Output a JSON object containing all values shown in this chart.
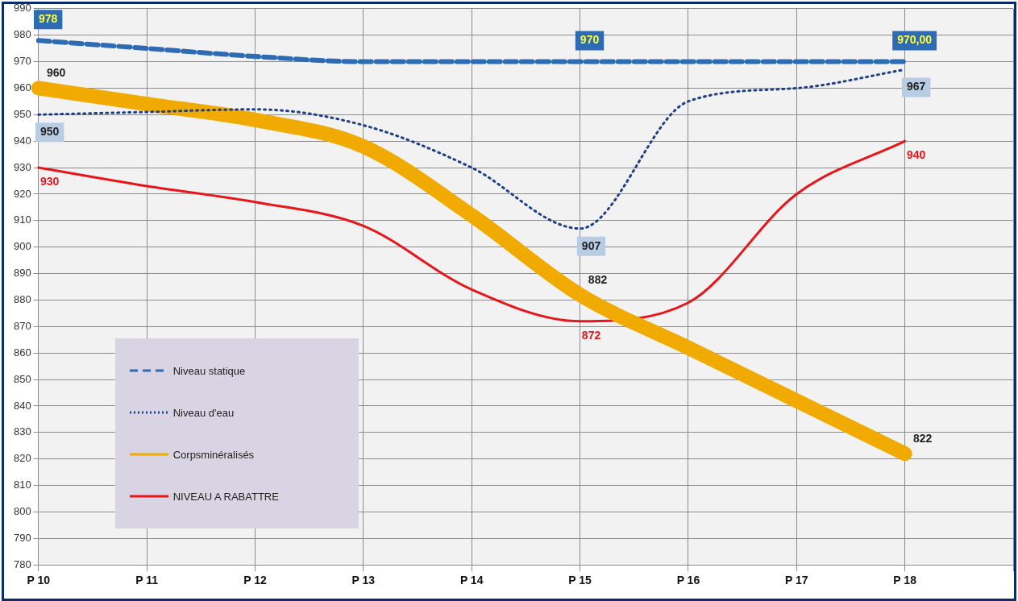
{
  "chart_data": {
    "type": "line",
    "categories": [
      "P 10",
      "P 11",
      "P 12",
      "P 13",
      "P 14",
      "P 15",
      "P 16",
      "P 17",
      "P 18",
      null
    ],
    "ylim": [
      780,
      990
    ],
    "yticks": [
      780,
      790,
      800,
      810,
      820,
      830,
      840,
      850,
      860,
      870,
      880,
      890,
      900,
      910,
      920,
      930,
      940,
      950,
      960,
      970,
      980,
      990
    ],
    "grid": true,
    "legend": "bottom left",
    "marker": "none",
    "series": [
      {
        "name": "Niveau statique",
        "color": "#2e6bb5",
        "line_style": "dashed",
        "values": [
          978,
          975,
          972,
          970,
          970,
          970,
          970,
          970,
          970,
          null
        ],
        "value_labels": [
          "978",
          null,
          null,
          null,
          null,
          "970",
          null,
          null,
          "970,00",
          null
        ]
      },
      {
        "name": "Niveau d'eau",
        "color": "#1f3f8a",
        "line_style": "dotted",
        "values": [
          950,
          951,
          952,
          946,
          930,
          907,
          955,
          960,
          967,
          null
        ],
        "value_labels": [
          "950",
          null,
          null,
          null,
          null,
          "907",
          null,
          null,
          "967",
          null
        ]
      },
      {
        "name": "Corpsminéralisés",
        "color": "#f0aa00",
        "line_style": "solid",
        "values": [
          960,
          954,
          948,
          938,
          912,
          882,
          862,
          842,
          822,
          null
        ],
        "value_labels": [
          "960",
          null,
          null,
          null,
          null,
          "882",
          null,
          null,
          "822",
          null
        ]
      },
      {
        "name": "NIVEAU A RABATTRE",
        "color": "#e8161b",
        "line_style": "solid",
        "values": [
          930,
          923,
          917,
          908,
          884,
          872,
          879,
          920,
          940,
          null
        ],
        "value_labels": [
          "930",
          null,
          null,
          null,
          null,
          "872",
          null,
          null,
          "940",
          null
        ]
      }
    ]
  }
}
